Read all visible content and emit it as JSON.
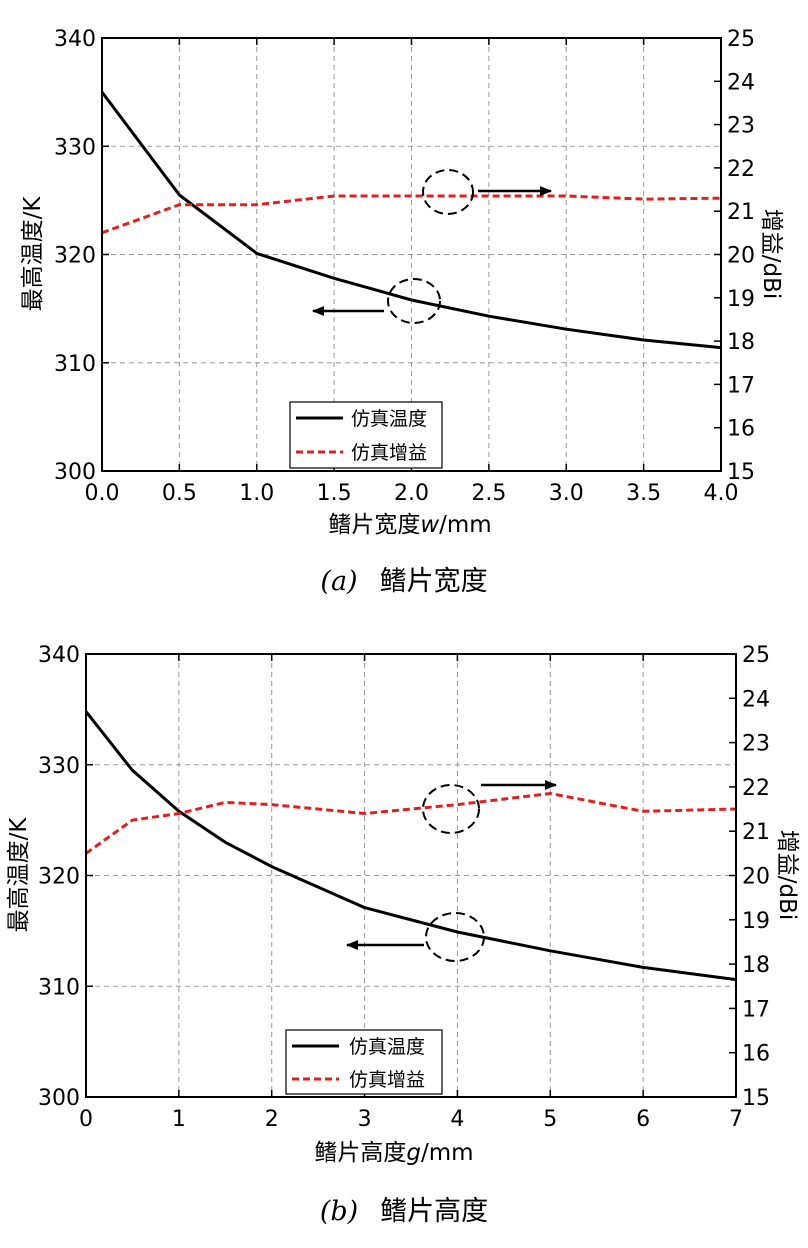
{
  "chart_data": [
    {
      "type": "line",
      "caption_label": "(a)",
      "caption_text": "鳍片宽度",
      "xlabel": "鳍片宽度",
      "xlabel_var": "w",
      "xlabel_unit": "/mm",
      "ylabel": "最高温度/K",
      "y2label": "增益/dBi",
      "xlim": [
        0,
        4
      ],
      "ylim": [
        300,
        340
      ],
      "y2lim": [
        15,
        25
      ],
      "xticks": [
        "0.0",
        "0.5",
        "1.0",
        "1.5",
        "2.0",
        "2.5",
        "3.0",
        "3.5",
        "4.0"
      ],
      "yticks": [
        "300",
        "310",
        "320",
        "330",
        "340"
      ],
      "y2ticks": [
        "15",
        "16",
        "17",
        "18",
        "19",
        "20",
        "21",
        "22",
        "23",
        "24",
        "25"
      ],
      "grid": true,
      "legend_position": "bottom-center",
      "series": [
        {
          "name": "仿真温度",
          "axis": "left",
          "style": "solid",
          "color": "#000000",
          "x": [
            0,
            0.5,
            1.0,
            1.5,
            2.0,
            2.5,
            3.0,
            3.5,
            4.0
          ],
          "values": [
            335.0,
            325.5,
            320.1,
            317.8,
            315.8,
            314.3,
            313.1,
            312.1,
            311.4
          ]
        },
        {
          "name": "仿真增益",
          "axis": "right",
          "style": "dashed",
          "color": "#e02020",
          "x": [
            0,
            0.5,
            1.0,
            1.5,
            2.0,
            2.5,
            3.0,
            3.5,
            4.0
          ],
          "values": [
            20.5,
            21.15,
            21.15,
            21.35,
            21.35,
            21.35,
            21.35,
            21.28,
            21.3
          ]
        }
      ]
    },
    {
      "type": "line",
      "caption_label": "(b)",
      "caption_text": "鳍片高度",
      "xlabel": "鳍片高度",
      "xlabel_var": "g",
      "xlabel_unit": "/mm",
      "ylabel": "最高温度/K",
      "y2label": "增益/dBi",
      "xlim": [
        0,
        7
      ],
      "ylim": [
        300,
        340
      ],
      "y2lim": [
        15,
        25
      ],
      "xticks": [
        "0",
        "1",
        "2",
        "3",
        "4",
        "5",
        "6",
        "7"
      ],
      "yticks": [
        "300",
        "310",
        "320",
        "330",
        "340"
      ],
      "y2ticks": [
        "15",
        "16",
        "17",
        "18",
        "19",
        "20",
        "21",
        "22",
        "23",
        "24",
        "25"
      ],
      "grid": true,
      "legend_position": "bottom-center",
      "series": [
        {
          "name": "仿真温度",
          "axis": "left",
          "style": "solid",
          "color": "#000000",
          "x": [
            0,
            0.5,
            1,
            1.5,
            2,
            3,
            4,
            5,
            6,
            7
          ],
          "values": [
            334.8,
            329.5,
            325.8,
            323.0,
            320.8,
            317.1,
            314.9,
            313.2,
            311.7,
            310.6
          ]
        },
        {
          "name": "仿真增益",
          "axis": "right",
          "style": "dashed",
          "color": "#e02020",
          "x": [
            0,
            0.5,
            1,
            1.5,
            2,
            3,
            4,
            5,
            6,
            7
          ],
          "values": [
            20.5,
            21.25,
            21.4,
            21.65,
            21.6,
            21.4,
            21.6,
            21.85,
            21.45,
            21.5
          ]
        }
      ]
    }
  ]
}
